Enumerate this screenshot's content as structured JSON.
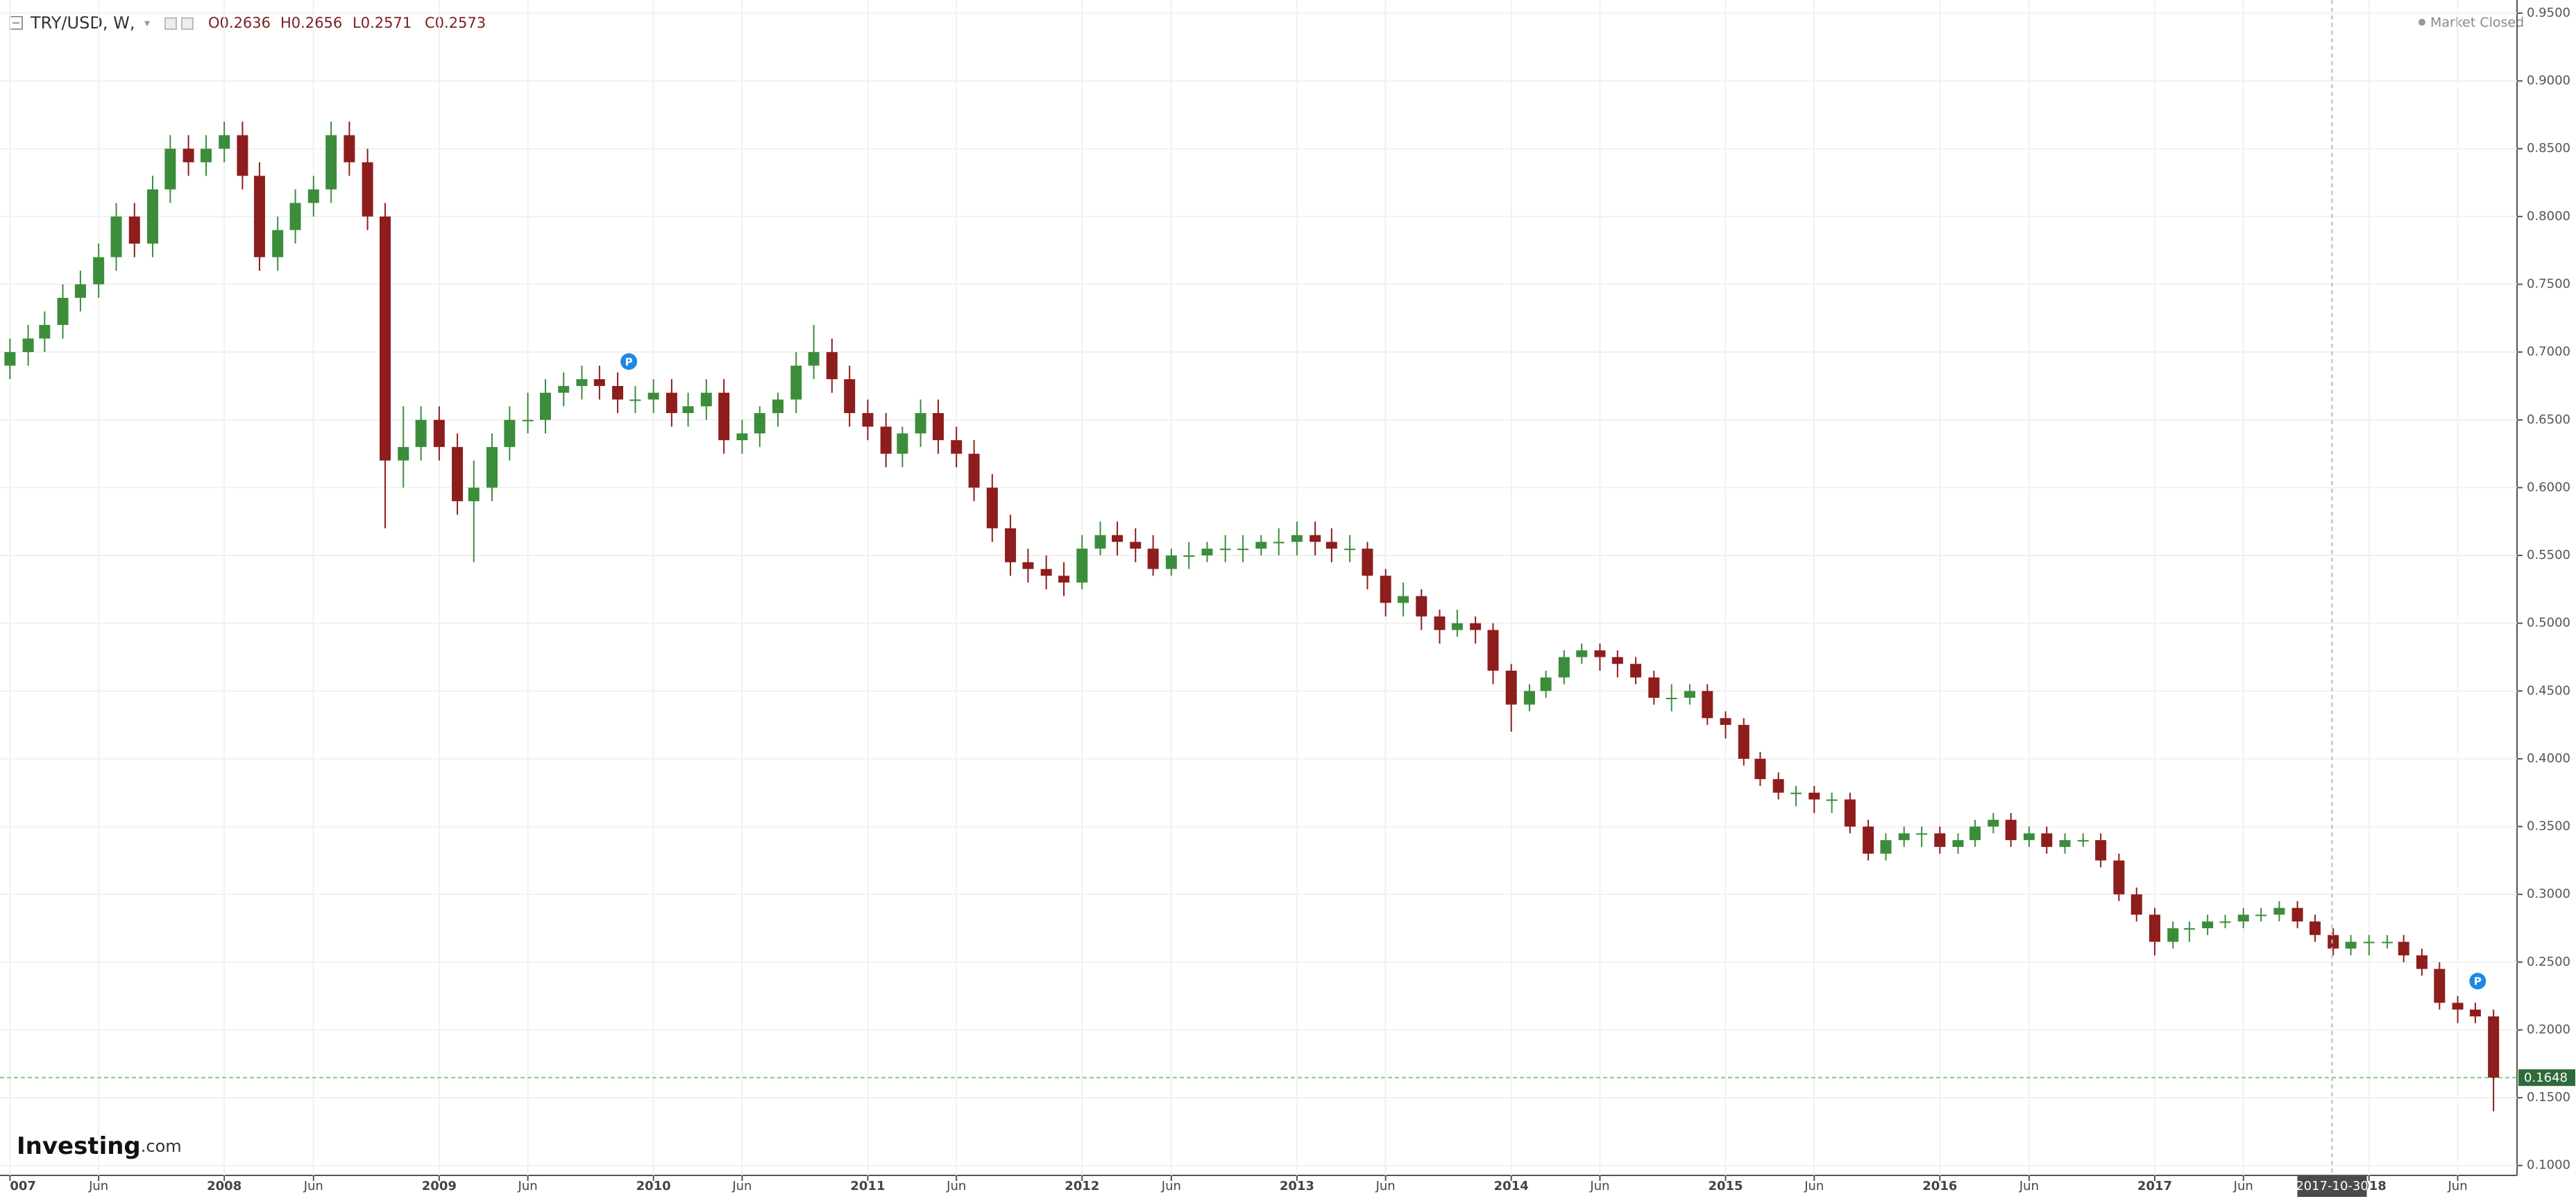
{
  "chart_data": {
    "type": "candlestick",
    "title": "TRY/USD, W,",
    "ohlc_labels": [
      "O0.2636",
      "H0.2656",
      "L0.2571",
      "C0.2573"
    ],
    "status": "Market Closed",
    "logo": "Investing",
    "logo_suffix": ".com",
    "up_color": "#3b8d3b",
    "down_color": "#8e1d1d",
    "grid": true,
    "x": [
      "2007-01-01",
      "2007-02-01",
      "2007-03-01",
      "2007-04-01",
      "2007-05-01",
      "2007-06-01",
      "2007-07-01",
      "2007-08-01",
      "2007-09-01",
      "2007-10-01",
      "2007-11-01",
      "2007-12-01",
      "2008-01-01",
      "2008-02-01",
      "2008-03-01",
      "2008-04-01",
      "2008-05-01",
      "2008-06-01",
      "2008-07-01",
      "2008-08-01",
      "2008-09-01",
      "2008-10-01",
      "2008-11-01",
      "2008-12-01",
      "2009-01-01",
      "2009-02-01",
      "2009-03-01",
      "2009-04-01",
      "2009-05-01",
      "2009-06-01",
      "2009-07-01",
      "2009-08-01",
      "2009-09-01",
      "2009-10-01",
      "2009-11-01",
      "2009-12-01",
      "2010-01-01",
      "2010-02-01",
      "2010-03-01",
      "2010-04-01",
      "2010-05-01",
      "2010-06-01",
      "2010-07-01",
      "2010-08-01",
      "2010-09-01",
      "2010-10-01",
      "2010-11-01",
      "2010-12-01",
      "2011-01-01",
      "2011-02-01",
      "2011-03-01",
      "2011-04-01",
      "2011-05-01",
      "2011-06-01",
      "2011-07-01",
      "2011-08-01",
      "2011-09-01",
      "2011-10-01",
      "2011-11-01",
      "2011-12-01",
      "2012-01-01",
      "2012-02-01",
      "2012-03-01",
      "2012-04-01",
      "2012-05-01",
      "2012-06-01",
      "2012-07-01",
      "2012-08-01",
      "2012-09-01",
      "2012-10-01",
      "2012-11-01",
      "2012-12-01",
      "2013-01-01",
      "2013-02-01",
      "2013-03-01",
      "2013-04-01",
      "2013-05-01",
      "2013-06-01",
      "2013-07-01",
      "2013-08-01",
      "2013-09-01",
      "2013-10-01",
      "2013-11-01",
      "2013-12-01",
      "2014-01-01",
      "2014-02-01",
      "2014-03-01",
      "2014-04-01",
      "2014-05-01",
      "2014-06-01",
      "2014-07-01",
      "2014-08-01",
      "2014-09-01",
      "2014-10-01",
      "2014-11-01",
      "2014-12-01",
      "2015-01-01",
      "2015-02-01",
      "2015-03-01",
      "2015-04-01",
      "2015-05-01",
      "2015-06-01",
      "2015-07-01",
      "2015-08-01",
      "2015-09-01",
      "2015-10-01",
      "2015-11-01",
      "2015-12-01",
      "2016-01-01",
      "2016-02-01",
      "2016-03-01",
      "2016-04-01",
      "2016-05-01",
      "2016-06-01",
      "2016-07-01",
      "2016-08-01",
      "2016-09-01",
      "2016-10-01",
      "2016-11-01",
      "2016-12-01",
      "2017-01-01",
      "2017-02-01",
      "2017-03-01",
      "2017-04-01",
      "2017-05-01",
      "2017-06-01",
      "2017-07-01",
      "2017-08-01",
      "2017-09-01",
      "2017-10-01",
      "2017-11-01",
      "2017-12-01",
      "2018-01-01",
      "2018-02-01",
      "2018-03-01",
      "2018-04-01",
      "2018-05-01",
      "2018-06-01",
      "2018-07-01",
      "2018-08-01"
    ],
    "open": [
      0.69,
      0.7,
      0.71,
      0.72,
      0.74,
      0.75,
      0.77,
      0.8,
      0.78,
      0.82,
      0.85,
      0.84,
      0.85,
      0.86,
      0.83,
      0.77,
      0.79,
      0.81,
      0.82,
      0.86,
      0.84,
      0.8,
      0.62,
      0.63,
      0.65,
      0.63,
      0.59,
      0.6,
      0.63,
      0.65,
      0.65,
      0.67,
      0.675,
      0.68,
      0.675,
      0.665,
      0.665,
      0.67,
      0.655,
      0.66,
      0.67,
      0.635,
      0.64,
      0.655,
      0.665,
      0.69,
      0.7,
      0.68,
      0.655,
      0.645,
      0.625,
      0.64,
      0.655,
      0.635,
      0.625,
      0.6,
      0.57,
      0.545,
      0.54,
      0.535,
      0.53,
      0.555,
      0.565,
      0.56,
      0.555,
      0.54,
      0.55,
      0.55,
      0.555,
      0.555,
      0.555,
      0.56,
      0.56,
      0.565,
      0.56,
      0.555,
      0.555,
      0.535,
      0.515,
      0.52,
      0.505,
      0.495,
      0.5,
      0.495,
      0.465,
      0.44,
      0.45,
      0.46,
      0.475,
      0.48,
      0.475,
      0.47,
      0.46,
      0.445,
      0.445,
      0.45,
      0.43,
      0.425,
      0.4,
      0.385,
      0.375,
      0.375,
      0.37,
      0.37,
      0.35,
      0.33,
      0.34,
      0.345,
      0.345,
      0.335,
      0.34,
      0.35,
      0.355,
      0.34,
      0.345,
      0.335,
      0.34,
      0.34,
      0.325,
      0.3,
      0.285,
      0.265,
      0.275,
      0.275,
      0.28,
      0.28,
      0.285,
      0.285,
      0.29,
      0.28,
      0.27,
      0.26,
      0.265,
      0.265,
      0.265,
      0.255,
      0.245,
      0.22,
      0.215,
      0.21
    ],
    "high": [
      0.71,
      0.72,
      0.73,
      0.75,
      0.76,
      0.78,
      0.81,
      0.81,
      0.83,
      0.86,
      0.86,
      0.86,
      0.87,
      0.87,
      0.84,
      0.8,
      0.82,
      0.83,
      0.87,
      0.87,
      0.85,
      0.81,
      0.66,
      0.66,
      0.66,
      0.64,
      0.62,
      0.64,
      0.66,
      0.67,
      0.68,
      0.685,
      0.69,
      0.69,
      0.685,
      0.675,
      0.68,
      0.68,
      0.67,
      0.68,
      0.68,
      0.65,
      0.66,
      0.67,
      0.7,
      0.72,
      0.71,
      0.69,
      0.665,
      0.655,
      0.645,
      0.665,
      0.665,
      0.645,
      0.635,
      0.61,
      0.58,
      0.555,
      0.55,
      0.545,
      0.565,
      0.575,
      0.575,
      0.57,
      0.565,
      0.555,
      0.56,
      0.56,
      0.565,
      0.565,
      0.565,
      0.57,
      0.575,
      0.575,
      0.57,
      0.565,
      0.56,
      0.54,
      0.53,
      0.525,
      0.51,
      0.51,
      0.505,
      0.5,
      0.47,
      0.455,
      0.465,
      0.48,
      0.485,
      0.485,
      0.48,
      0.475,
      0.465,
      0.455,
      0.455,
      0.455,
      0.435,
      0.43,
      0.405,
      0.39,
      0.38,
      0.38,
      0.375,
      0.375,
      0.355,
      0.345,
      0.35,
      0.35,
      0.35,
      0.345,
      0.355,
      0.36,
      0.36,
      0.35,
      0.35,
      0.345,
      0.345,
      0.345,
      0.33,
      0.305,
      0.29,
      0.28,
      0.28,
      0.285,
      0.285,
      0.29,
      0.29,
      0.295,
      0.295,
      0.285,
      0.275,
      0.27,
      0.27,
      0.27,
      0.27,
      0.26,
      0.25,
      0.225,
      0.22,
      0.215
    ],
    "low": [
      0.68,
      0.69,
      0.7,
      0.71,
      0.73,
      0.74,
      0.76,
      0.77,
      0.77,
      0.81,
      0.83,
      0.83,
      0.84,
      0.82,
      0.76,
      0.76,
      0.78,
      0.8,
      0.81,
      0.83,
      0.79,
      0.57,
      0.6,
      0.62,
      0.62,
      0.58,
      0.545,
      0.59,
      0.62,
      0.64,
      0.64,
      0.66,
      0.665,
      0.665,
      0.655,
      0.655,
      0.655,
      0.645,
      0.645,
      0.65,
      0.625,
      0.625,
      0.63,
      0.645,
      0.655,
      0.68,
      0.67,
      0.645,
      0.635,
      0.615,
      0.615,
      0.63,
      0.625,
      0.615,
      0.59,
      0.56,
      0.535,
      0.53,
      0.525,
      0.52,
      0.525,
      0.55,
      0.55,
      0.545,
      0.535,
      0.535,
      0.54,
      0.545,
      0.545,
      0.545,
      0.55,
      0.55,
      0.55,
      0.55,
      0.545,
      0.545,
      0.525,
      0.505,
      0.505,
      0.495,
      0.485,
      0.49,
      0.485,
      0.455,
      0.42,
      0.435,
      0.445,
      0.455,
      0.47,
      0.465,
      0.46,
      0.455,
      0.44,
      0.435,
      0.44,
      0.425,
      0.415,
      0.395,
      0.38,
      0.37,
      0.365,
      0.36,
      0.36,
      0.345,
      0.325,
      0.325,
      0.335,
      0.335,
      0.33,
      0.33,
      0.335,
      0.345,
      0.335,
      0.335,
      0.33,
      0.33,
      0.335,
      0.32,
      0.295,
      0.28,
      0.255,
      0.26,
      0.265,
      0.27,
      0.275,
      0.275,
      0.28,
      0.28,
      0.275,
      0.265,
      0.255,
      0.255,
      0.255,
      0.26,
      0.25,
      0.24,
      0.215,
      0.205,
      0.205,
      0.14
    ],
    "close": [
      0.7,
      0.71,
      0.72,
      0.74,
      0.75,
      0.77,
      0.8,
      0.78,
      0.82,
      0.85,
      0.84,
      0.85,
      0.86,
      0.83,
      0.77,
      0.79,
      0.81,
      0.82,
      0.86,
      0.84,
      0.8,
      0.62,
      0.63,
      0.65,
      0.63,
      0.59,
      0.6,
      0.63,
      0.65,
      0.65,
      0.67,
      0.675,
      0.68,
      0.675,
      0.665,
      0.665,
      0.67,
      0.655,
      0.66,
      0.67,
      0.635,
      0.64,
      0.655,
      0.665,
      0.69,
      0.7,
      0.68,
      0.655,
      0.645,
      0.625,
      0.64,
      0.655,
      0.635,
      0.625,
      0.6,
      0.57,
      0.545,
      0.54,
      0.535,
      0.53,
      0.555,
      0.565,
      0.56,
      0.555,
      0.54,
      0.55,
      0.55,
      0.555,
      0.555,
      0.555,
      0.56,
      0.56,
      0.565,
      0.56,
      0.555,
      0.555,
      0.535,
      0.515,
      0.52,
      0.505,
      0.495,
      0.5,
      0.495,
      0.465,
      0.44,
      0.45,
      0.46,
      0.475,
      0.48,
      0.475,
      0.47,
      0.46,
      0.445,
      0.445,
      0.45,
      0.43,
      0.425,
      0.4,
      0.385,
      0.375,
      0.375,
      0.37,
      0.37,
      0.35,
      0.33,
      0.34,
      0.345,
      0.345,
      0.335,
      0.34,
      0.35,
      0.355,
      0.34,
      0.345,
      0.335,
      0.34,
      0.34,
      0.325,
      0.3,
      0.285,
      0.265,
      0.275,
      0.275,
      0.28,
      0.28,
      0.285,
      0.285,
      0.29,
      0.28,
      0.27,
      0.26,
      0.265,
      0.265,
      0.265,
      0.255,
      0.245,
      0.22,
      0.215,
      0.21,
      0.1648
    ],
    "xlim": [
      "2006-12-15",
      "2018-09-10"
    ],
    "xticks": [
      {
        "value": "2007-01-01",
        "label": "007"
      },
      {
        "value": "2007-06-01",
        "label": "Jun"
      },
      {
        "value": "2008-01-01",
        "label": "2008"
      },
      {
        "value": "2008-06-01",
        "label": "Jun"
      },
      {
        "value": "2009-01-01",
        "label": "2009"
      },
      {
        "value": "2009-06-01",
        "label": "Jun"
      },
      {
        "value": "2010-01-01",
        "label": "2010"
      },
      {
        "value": "2010-06-01",
        "label": "Jun"
      },
      {
        "value": "2011-01-01",
        "label": "2011"
      },
      {
        "value": "2011-06-01",
        "label": "Jun"
      },
      {
        "value": "2012-01-01",
        "label": "2012"
      },
      {
        "value": "2012-06-01",
        "label": "Jun"
      },
      {
        "value": "2013-01-01",
        "label": "2013"
      },
      {
        "value": "2013-06-01",
        "label": "Jun"
      },
      {
        "value": "2014-01-01",
        "label": "2014"
      },
      {
        "value": "2014-06-01",
        "label": "Jun"
      },
      {
        "value": "2015-01-01",
        "label": "2015"
      },
      {
        "value": "2015-06-01",
        "label": "Jun"
      },
      {
        "value": "2016-01-01",
        "label": "2016"
      },
      {
        "value": "2016-06-01",
        "label": "Jun"
      },
      {
        "value": "2017-01-01",
        "label": "2017"
      },
      {
        "value": "2017-06-01",
        "label": "Jun"
      },
      {
        "value": "2018-01-01",
        "label": "2018"
      },
      {
        "value": "2018-06-01",
        "label": "Jun"
      }
    ],
    "ylim": [
      0.0927,
      0.9597
    ],
    "yticks": [
      {
        "value": 0.1,
        "label": "0.1000"
      },
      {
        "value": 0.15,
        "label": "0.1500"
      },
      {
        "value": 0.2,
        "label": "0.2000"
      },
      {
        "value": 0.25,
        "label": "0.2500"
      },
      {
        "value": 0.3,
        "label": "0.3000"
      },
      {
        "value": 0.35,
        "label": "0.3500"
      },
      {
        "value": 0.4,
        "label": "0.4000"
      },
      {
        "value": 0.45,
        "label": "0.4500"
      },
      {
        "value": 0.5,
        "label": "0.5000"
      },
      {
        "value": 0.55,
        "label": "0.5500"
      },
      {
        "value": 0.6,
        "label": "0.6000"
      },
      {
        "value": 0.65,
        "label": "0.6500"
      },
      {
        "value": 0.7,
        "label": "0.7000"
      },
      {
        "value": 0.75,
        "label": "0.7500"
      },
      {
        "value": 0.8,
        "label": "0.8000"
      },
      {
        "value": 0.85,
        "label": "0.8500"
      },
      {
        "value": 0.9,
        "label": "0.9000"
      },
      {
        "value": 0.95,
        "label": "0.9500"
      }
    ],
    "last_price": {
      "value": 0.1648,
      "label": "0.1648"
    },
    "crosshair_x": "2017-10-30",
    "events": [
      {
        "x": "2009-11-20",
        "y": 0.693,
        "label": "P"
      },
      {
        "x": "2018-07-05",
        "y": 0.236,
        "label": "P"
      }
    ]
  }
}
